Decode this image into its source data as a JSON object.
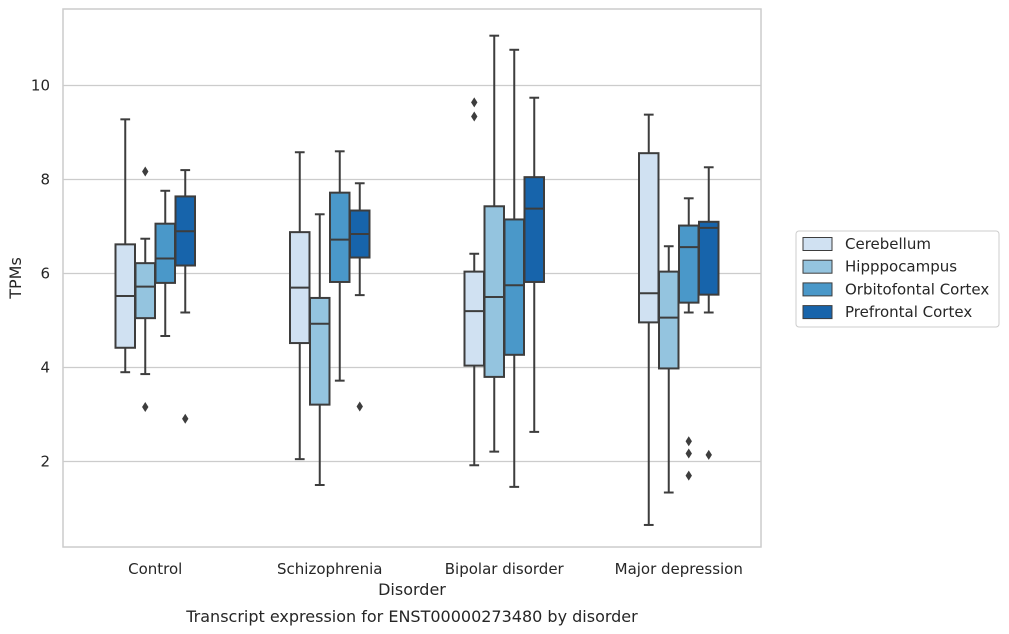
{
  "caption": "Transcript expression for ENST00000273480 by disorder",
  "chart_data": {
    "type": "box",
    "xlabel": "Disorder",
    "ylabel": "TPMs",
    "categories": [
      "Control",
      "Schizophrenia",
      "Bipolar disorder",
      "Major depression"
    ],
    "yticks": [
      2,
      4,
      6,
      8,
      10
    ],
    "ylim": [
      0.15,
      11.6
    ],
    "grid": "horizontal",
    "legend_position": "right",
    "colors": {
      "Cerebellum": "#d0e1f2",
      "Hipppocampus": "#94c4df",
      "Orbitofontal Cortex": "#4a98c9",
      "Prefrontal Cortex": "#1764ab"
    },
    "series": [
      {
        "name": "Cerebellum",
        "boxes": [
          {
            "whislo": 3.9,
            "q1": 4.42,
            "median": 5.52,
            "q3": 6.62,
            "whishi": 9.28,
            "fliers": []
          },
          {
            "whislo": 2.05,
            "q1": 4.52,
            "median": 5.7,
            "q3": 6.88,
            "whishi": 8.58,
            "fliers": []
          },
          {
            "whislo": 1.92,
            "q1": 4.04,
            "median": 5.2,
            "q3": 6.04,
            "whishi": 6.42,
            "fliers": [
              9.34,
              9.64
            ]
          },
          {
            "whislo": 0.65,
            "q1": 4.96,
            "median": 5.58,
            "q3": 8.56,
            "whishi": 9.38,
            "fliers": []
          }
        ]
      },
      {
        "name": "Hipppocampus",
        "boxes": [
          {
            "whislo": 3.86,
            "q1": 5.05,
            "median": 5.72,
            "q3": 6.22,
            "whishi": 6.74,
            "fliers": [
              3.16,
              8.17
            ]
          },
          {
            "whislo": 1.5,
            "q1": 3.21,
            "median": 4.93,
            "q3": 5.48,
            "whishi": 7.26,
            "fliers": []
          },
          {
            "whislo": 2.21,
            "q1": 3.8,
            "median": 5.5,
            "q3": 7.43,
            "whishi": 11.06,
            "fliers": []
          },
          {
            "whislo": 1.34,
            "q1": 3.98,
            "median": 5.06,
            "q3": 6.04,
            "whishi": 6.58,
            "fliers": []
          }
        ]
      },
      {
        "name": "Orbitofontal Cortex",
        "boxes": [
          {
            "whislo": 4.67,
            "q1": 5.8,
            "median": 6.32,
            "q3": 7.06,
            "whishi": 7.76,
            "fliers": []
          },
          {
            "whislo": 3.72,
            "q1": 5.82,
            "median": 6.72,
            "q3": 7.72,
            "whishi": 8.6,
            "fliers": []
          },
          {
            "whislo": 1.46,
            "q1": 4.27,
            "median": 5.75,
            "q3": 7.15,
            "whishi": 10.76,
            "fliers": []
          },
          {
            "whislo": 5.17,
            "q1": 5.38,
            "median": 6.56,
            "q3": 7.02,
            "whishi": 7.6,
            "fliers": [
              1.7,
              2.17,
              2.43
            ]
          }
        ]
      },
      {
        "name": "Prefrontal Cortex",
        "boxes": [
          {
            "whislo": 5.17,
            "q1": 6.17,
            "median": 6.9,
            "q3": 7.64,
            "whishi": 8.2,
            "fliers": [
              2.91
            ]
          },
          {
            "whislo": 5.54,
            "q1": 6.34,
            "median": 6.84,
            "q3": 7.34,
            "whishi": 7.92,
            "fliers": [
              3.17
            ]
          },
          {
            "whislo": 2.63,
            "q1": 5.82,
            "median": 7.38,
            "q3": 8.05,
            "whishi": 9.74,
            "fliers": []
          },
          {
            "whislo": 5.17,
            "q1": 5.55,
            "median": 6.97,
            "q3": 7.1,
            "whishi": 8.26,
            "fliers": [
              2.14
            ]
          }
        ]
      }
    ]
  }
}
